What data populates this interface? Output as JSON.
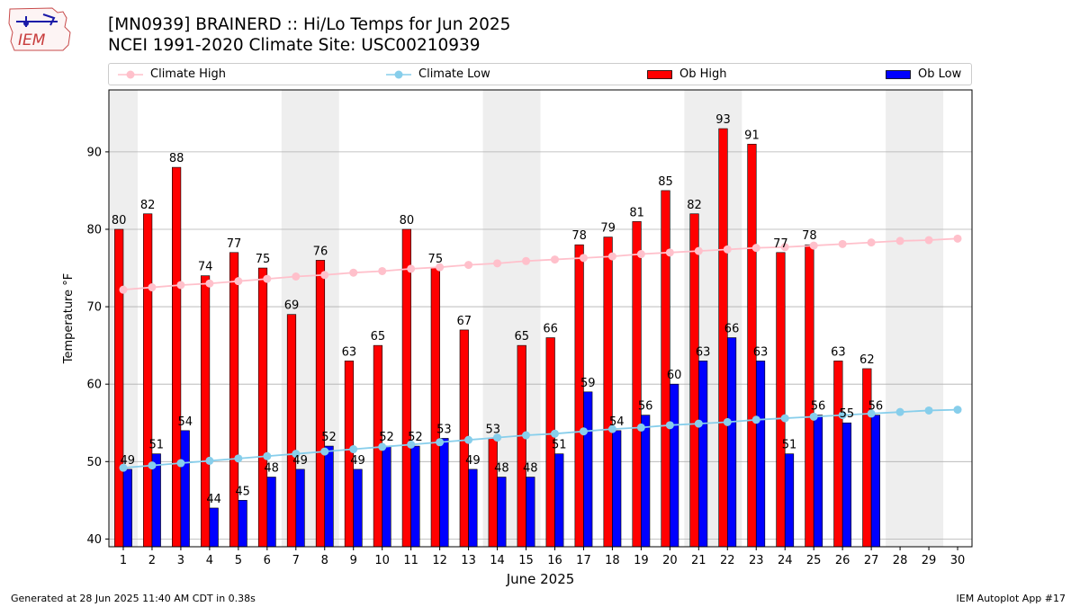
{
  "header": {
    "logo_text": "IEM",
    "title_line1": "[MN0939] BRAINERD :: Hi/Lo Temps for Jun 2025",
    "title_line2": "NCEI 1991-2020 Climate Site: USC00210939"
  },
  "footer": {
    "left": "Generated at 28 Jun 2025 11:40 AM CDT in 0.38s",
    "right": "IEM Autoplot App #17"
  },
  "colors": {
    "ob_high": "#ff0000",
    "ob_low": "#0000ff",
    "climate_high": "#ffc0cb",
    "climate_low": "#87ceeb",
    "weekend_shade": "#eeeeee",
    "grid": "#b0b0b0"
  },
  "chart_data": {
    "type": "bar",
    "xlabel": "June 2025",
    "ylabel": "Temperature °F",
    "ylim": [
      39,
      98
    ],
    "xlim": [
      0.5,
      30.5
    ],
    "yticks": [
      40,
      50,
      60,
      70,
      80,
      90
    ],
    "grid": "horizontal",
    "legend_placement": "top, spanning chart width",
    "categories": [
      1,
      2,
      3,
      4,
      5,
      6,
      7,
      8,
      9,
      10,
      11,
      12,
      13,
      14,
      15,
      16,
      17,
      18,
      19,
      20,
      21,
      22,
      23,
      24,
      25,
      26,
      27,
      28,
      29,
      30
    ],
    "shaded_days": [
      [
        0.5,
        1.5
      ],
      [
        6.5,
        8.5
      ],
      [
        13.5,
        15.5
      ],
      [
        20.5,
        22.5
      ],
      [
        27.5,
        29.5
      ]
    ],
    "series": [
      {
        "name": "Climate High",
        "kind": "line",
        "values": [
          72.2,
          72.5,
          72.8,
          73.0,
          73.3,
          73.6,
          73.9,
          74.1,
          74.4,
          74.6,
          74.9,
          75.1,
          75.4,
          75.6,
          75.9,
          76.1,
          76.3,
          76.5,
          76.8,
          77.0,
          77.2,
          77.4,
          77.6,
          77.7,
          77.9,
          78.1,
          78.3,
          78.5,
          78.6,
          78.8
        ]
      },
      {
        "name": "Climate Low",
        "kind": "line",
        "values": [
          49.2,
          49.5,
          49.8,
          50.1,
          50.4,
          50.7,
          51.0,
          51.3,
          51.6,
          51.9,
          52.2,
          52.5,
          52.8,
          53.1,
          53.4,
          53.6,
          53.9,
          54.2,
          54.4,
          54.7,
          54.9,
          55.1,
          55.4,
          55.6,
          55.8,
          56.0,
          56.2,
          56.4,
          56.6,
          56.7
        ]
      },
      {
        "name": "Ob High",
        "kind": "bar",
        "values": [
          80,
          82,
          88,
          74,
          77,
          75,
          69,
          76,
          63,
          65,
          80,
          75,
          67,
          53,
          65,
          66,
          78,
          79,
          81,
          85,
          82,
          93,
          91,
          77,
          78,
          63,
          62,
          null,
          null,
          null
        ]
      },
      {
        "name": "Ob Low",
        "kind": "bar",
        "values": [
          49,
          51,
          54,
          44,
          45,
          48,
          49,
          52,
          49,
          52,
          52,
          53,
          49,
          48,
          48,
          51,
          59,
          54,
          56,
          60,
          63,
          66,
          63,
          51,
          56,
          55,
          56,
          null,
          null,
          null
        ]
      }
    ]
  }
}
